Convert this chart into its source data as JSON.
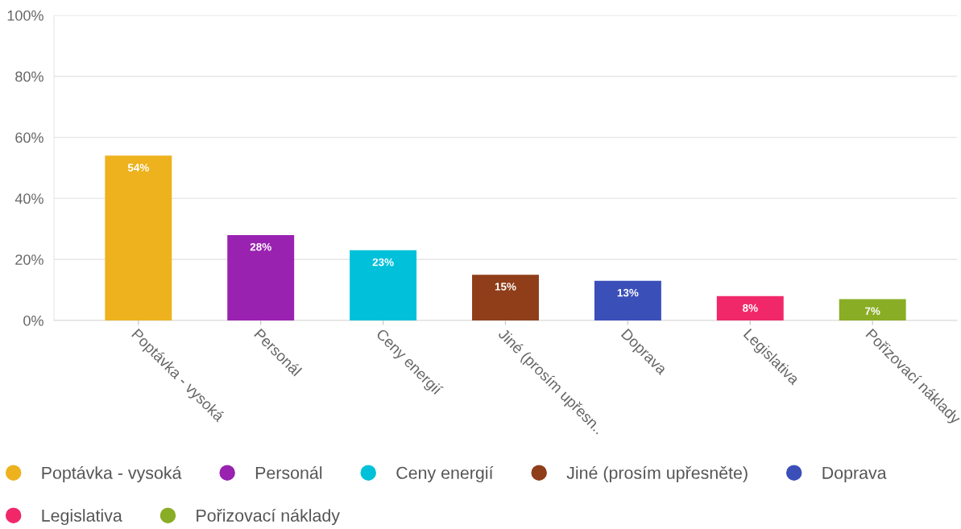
{
  "chart_data": {
    "type": "bar",
    "categories": [
      "Poptávka - vysoká",
      "Personál",
      "Ceny energií",
      "Jiné (prosím upřesn..",
      "Doprava",
      "Legislativa",
      "Pořizovací náklady"
    ],
    "stacked": true,
    "series": [
      {
        "name": "Poptávka - vysoká",
        "color": "#edb21e",
        "values": [
          54,
          null,
          null,
          null,
          null,
          null,
          null
        ],
        "value_labels": [
          "54%",
          null,
          null,
          null,
          null,
          null,
          null
        ]
      },
      {
        "name": "Personál",
        "color": "#9922b0",
        "values": [
          null,
          28,
          null,
          null,
          null,
          null,
          null
        ],
        "value_labels": [
          null,
          "28%",
          null,
          null,
          null,
          null,
          null
        ]
      },
      {
        "name": "Ceny energií",
        "color": "#00c1d9",
        "values": [
          null,
          null,
          23,
          null,
          null,
          null,
          null
        ],
        "value_labels": [
          null,
          null,
          "23%",
          null,
          null,
          null,
          null
        ]
      },
      {
        "name": "Jiné (prosím upřesněte)",
        "color": "#8f3e19",
        "values": [
          null,
          null,
          null,
          15,
          null,
          null,
          null
        ],
        "value_labels": [
          null,
          null,
          null,
          "15%",
          null,
          null,
          null
        ]
      },
      {
        "name": "Doprava",
        "color": "#3b4fb9",
        "values": [
          null,
          null,
          null,
          null,
          13,
          null,
          null
        ],
        "value_labels": [
          null,
          null,
          null,
          null,
          "13%",
          null,
          null
        ]
      },
      {
        "name": "Legislativa",
        "color": "#f0286a",
        "values": [
          null,
          null,
          null,
          null,
          null,
          8,
          null
        ],
        "value_labels": [
          null,
          null,
          null,
          null,
          null,
          "8%",
          null
        ]
      },
      {
        "name": "Pořizovací náklady",
        "color": "#89ad25",
        "values": [
          null,
          null,
          null,
          null,
          null,
          null,
          7
        ],
        "value_labels": [
          null,
          null,
          null,
          null,
          null,
          null,
          "7%"
        ]
      }
    ],
    "ylim": [
      0,
      100
    ],
    "yticks": [
      {
        "value": 0,
        "label": "0%"
      },
      {
        "value": 20,
        "label": "20%"
      },
      {
        "value": 40,
        "label": "40%"
      },
      {
        "value": 60,
        "label": "60%"
      },
      {
        "value": 80,
        "label": "80%"
      },
      {
        "value": 100,
        "label": "100%"
      }
    ],
    "grid": "y",
    "legend": "bottom"
  }
}
